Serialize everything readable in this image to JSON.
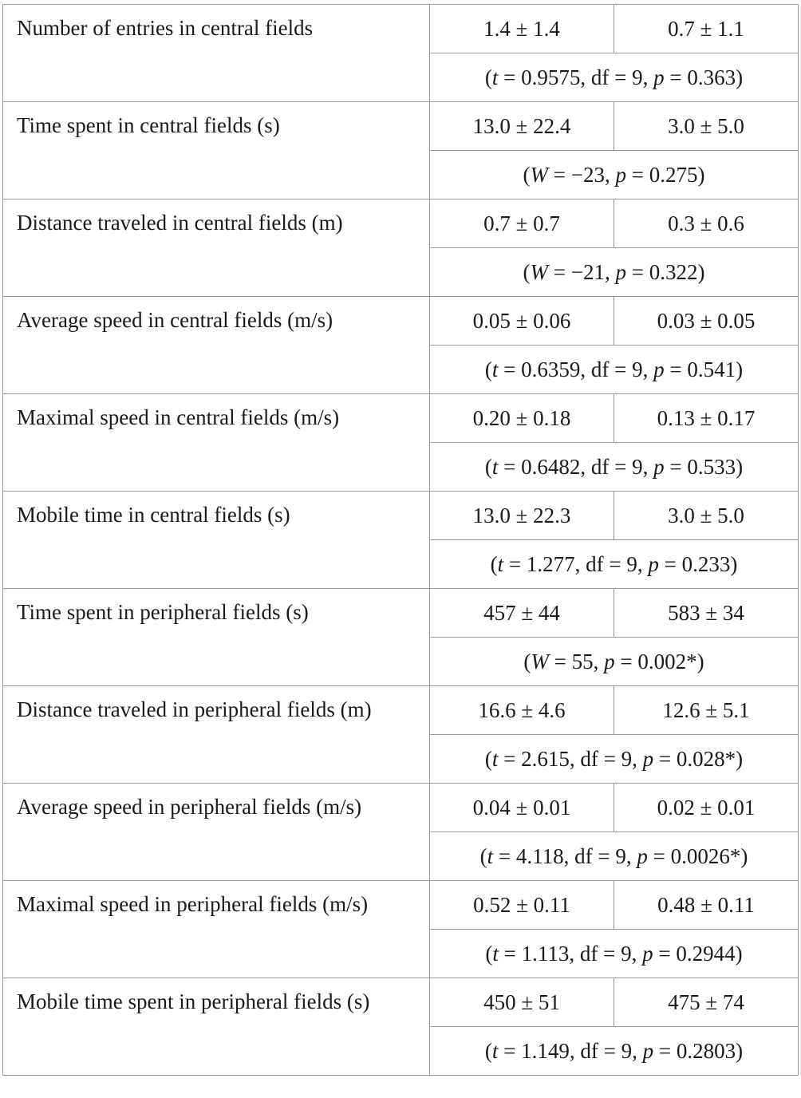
{
  "rows": [
    {
      "label": "Number of entries in central fields",
      "a": "1.4 ± 1.4",
      "b": "0.7 ± 1.1",
      "stat": {
        "test": "t",
        "value": "0.9575",
        "df": "9",
        "p": "0.363"
      }
    },
    {
      "label": "Time spent in central fields (s)",
      "a": "13.0 ± 22.4",
      "b": "3.0 ± 5.0",
      "stat": {
        "test": "W",
        "value": "−23",
        "df": null,
        "p": "0.275"
      }
    },
    {
      "label": "Distance traveled in central fields (m)",
      "a": "0.7 ± 0.7",
      "b": "0.3 ± 0.6",
      "stat": {
        "test": "W",
        "value": "−21",
        "df": null,
        "p": "0.322"
      }
    },
    {
      "label": "Average speed in central fields (m/s)",
      "a": "0.05 ± 0.06",
      "b": "0.03 ± 0.05",
      "stat": {
        "test": "t",
        "value": "0.6359",
        "df": "9",
        "p": "0.541"
      }
    },
    {
      "label": "Maximal speed in central fields (m/s)",
      "a": "0.20 ± 0.18",
      "b": "0.13 ± 0.17",
      "stat": {
        "test": "t",
        "value": "0.6482",
        "df": "9",
        "p": "0.533"
      }
    },
    {
      "label": "Mobile time in central fields (s)",
      "a": "13.0 ± 22.3",
      "b": "3.0 ± 5.0",
      "stat": {
        "test": "t",
        "value": "1.277",
        "df": "9",
        "p": "0.233"
      }
    },
    {
      "label": "Time spent in peripheral fields (s)",
      "a": "457 ± 44",
      "b": "583 ± 34",
      "stat": {
        "test": "W",
        "value": "55",
        "df": null,
        "p": "0.002*"
      }
    },
    {
      "label": "Distance traveled in peripheral fields (m)",
      "a": "16.6 ± 4.6",
      "b": "12.6 ± 5.1",
      "stat": {
        "test": "t",
        "value": "2.615",
        "df": "9",
        "p": "0.028*"
      }
    },
    {
      "label": "Average speed in peripheral fields (m/s)",
      "a": "0.04 ± 0.01",
      "b": "0.02 ± 0.01",
      "stat": {
        "test": "t",
        "value": "4.118",
        "df": "9",
        "p": "0.0026*"
      }
    },
    {
      "label": "Maximal speed in peripheral fields (m/s)",
      "a": "0.52 ± 0.11",
      "b": "0.48 ± 0.11",
      "stat": {
        "test": "t",
        "value": "1.113",
        "df": "9",
        "p": "0.2944"
      }
    },
    {
      "label": "Mobile time spent in peripheral fields (s)",
      "a": "450 ± 51",
      "b": "475 ± 74",
      "stat": {
        "test": "t",
        "value": "1.149",
        "df": "9",
        "p": "0.2803"
      }
    }
  ]
}
